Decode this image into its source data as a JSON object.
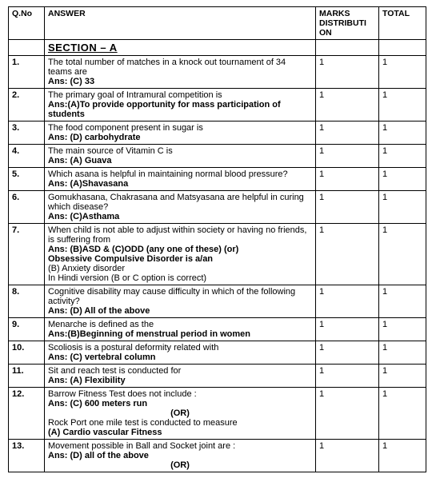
{
  "headers": {
    "qno": "Q.No",
    "answer": "ANSWER",
    "marks": "MARKS DISTRIBUTI ON",
    "total": "TOTAL"
  },
  "section_title": "SECTION – A",
  "or_label": "(OR)",
  "rows": [
    {
      "qno": "1.",
      "lines": [
        {
          "text": "The total number of matches in a knock out tournament of 34 teams are",
          "bold": false
        },
        {
          "text": "Ans:  (C)  33",
          "bold": true
        }
      ],
      "marks": "1",
      "total": "1"
    },
    {
      "qno": "2.",
      "lines": [
        {
          "text": "The primary goal of Intramural competition is",
          "bold": false
        },
        {
          "text": "Ans:(A)To provide opportunity for mass participation of students",
          "bold": true
        }
      ],
      "marks": "1",
      "total": "1"
    },
    {
      "qno": "3.",
      "lines": [
        {
          "text": "The food component present in sugar is",
          "bold": false
        },
        {
          "text": "Ans: (D) carbohydrate",
          "bold": true
        }
      ],
      "marks": "1",
      "total": "1"
    },
    {
      "qno": "4.",
      "lines": [
        {
          "text": "The main source of Vitamin C is",
          "bold": false
        },
        {
          "text": "Ans: (A) Guava",
          "bold": true
        }
      ],
      "marks": "1",
      "total": "1"
    },
    {
      "qno": "5.",
      "lines": [
        {
          "text": "Which asana is helpful in maintaining normal blood pressure?",
          "bold": false
        },
        {
          "text": "Ans: (A)Shavasana",
          "bold": true
        }
      ],
      "marks": "1",
      "total": "1"
    },
    {
      "qno": "6.",
      "lines": [
        {
          "text": "Gomukhasana, Chakrasana and Matsyasana are helpful in curing which disease?",
          "bold": false
        },
        {
          "text": "Ans: (C)Asthama",
          "bold": true
        }
      ],
      "marks": "1",
      "total": "1"
    },
    {
      "qno": "7.",
      "lines": [
        {
          "text": "When child is not able to adjust within society or having no friends, is suffering from",
          "bold": false
        },
        {
          "text": "Ans: (B)ASD & (C)ODD     (any one of these)        (or)",
          "bold": true
        },
        {
          "text": " ",
          "bold": false
        },
        {
          "text": "Obsessive Compulsive Disorder is a/an",
          "bold": true
        },
        {
          "text": "(B) Anxiety disorder",
          "bold": false
        },
        {
          "text": "In Hindi version (B or C option is correct)",
          "bold": false
        }
      ],
      "marks": "1",
      "total": "1"
    },
    {
      "qno": "8.",
      "lines": [
        {
          "text": "Cognitive disability may cause difficulty in which of the following activity?",
          "bold": false
        },
        {
          "text": "Ans: (D) All of the above",
          "bold": true
        }
      ],
      "marks": "1",
      "total": "1"
    },
    {
      "qno": "9.",
      "lines": [
        {
          "text": "Menarche is defined as the",
          "bold": false
        },
        {
          "text": "Ans:(B)Beginning of menstrual period in women",
          "bold": true
        }
      ],
      "marks": "1",
      "total": "1"
    },
    {
      "qno": "10.",
      "lines": [
        {
          "text": "Scoliosis is a postural deformity related with",
          "bold": false
        },
        {
          "text": "Ans: (C) vertebral column",
          "bold": true
        }
      ],
      "marks": "1",
      "total": "1"
    },
    {
      "qno": "11.",
      "lines": [
        {
          "text": "Sit and reach test is conducted for",
          "bold": false
        },
        {
          "text": "Ans: (A) Flexibility",
          "bold": true
        }
      ],
      "marks": "1",
      "total": "1"
    },
    {
      "qno": "12.",
      "lines": [
        {
          "text": "Barrow Fitness Test does not include :",
          "bold": false
        },
        {
          "text": "Ans: (C) 600 meters run",
          "bold": true
        },
        {
          "text": "(OR)",
          "bold": true,
          "center": true
        },
        {
          "text": "Rock Port one mile test is conducted to measure",
          "bold": false
        },
        {
          "text": " (A) Cardio vascular Fitness",
          "bold": true
        }
      ],
      "marks": "1",
      "total": "1"
    },
    {
      "qno": "13.",
      "lines": [
        {
          "text": "Movement possible in Ball and Socket joint are :",
          "bold": false
        },
        {
          "text": "Ans: (D) all of the above",
          "bold": true
        },
        {
          "text": "(OR)",
          "bold": true,
          "center": true
        }
      ],
      "marks": "1",
      "total": "1"
    }
  ]
}
